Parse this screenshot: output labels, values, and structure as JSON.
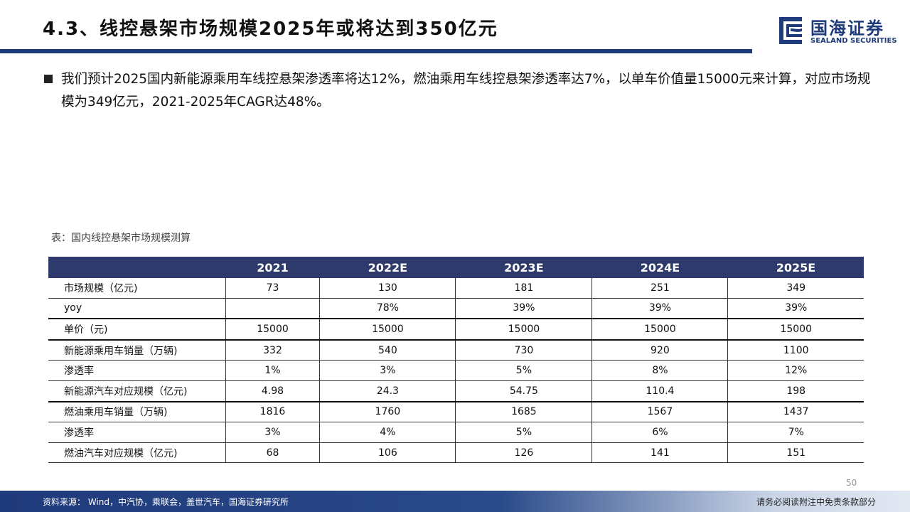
{
  "header": {
    "title": "4.3、线控悬架市场规模2025年或将达到350亿元",
    "logo_name": "国海证券",
    "logo_sub": "SEALAND SECURITIES"
  },
  "bullet": "我们预计2025国内新能源乘用车线控悬架渗透率将达12%，燃油乘用车线控悬架渗透率达7%，以单车价值量15000元来计算，对应市场规模为349亿元，2021-2025年CAGR达48%。",
  "table": {
    "caption": "表：国内线控悬架市场规模测算",
    "columns": [
      "2021",
      "2022E",
      "2023E",
      "2024E",
      "2025E"
    ],
    "rows": [
      [
        "市场规模（亿元)",
        "73",
        "130",
        "181",
        "251",
        "349"
      ],
      [
        "yoy",
        null,
        "78%",
        "39%",
        "39%",
        "39%"
      ],
      [
        "单价（元)",
        "15000",
        "15000",
        "15000",
        "15000",
        "15000"
      ],
      [
        "新能源乘用车销量（万辆)",
        "332",
        "540",
        "730",
        "920",
        "1100"
      ],
      [
        "渗透率",
        "1%",
        "3%",
        "5%",
        "8%",
        "12%"
      ],
      [
        "新能源汽车对应规模（亿元)",
        "4.98",
        "24.3",
        "54.75",
        "110.4",
        "198"
      ],
      [
        "燃油乘用车销量（万辆)",
        "1816",
        "1760",
        "1685",
        "1567",
        "1437"
      ],
      [
        "渗透率",
        "3%",
        "4%",
        "5%",
        "6%",
        "7%"
      ],
      [
        "燃油汽车对应规模（亿元)",
        "68",
        "106",
        "126",
        "141",
        "151"
      ]
    ]
  },
  "footer": {
    "source": "资料来源： Wind，中汽协，乘联会，盖世汽车，国海证券研究所",
    "disclaimer": "请务必阅读附注中免责条款部分",
    "page": "50"
  }
}
